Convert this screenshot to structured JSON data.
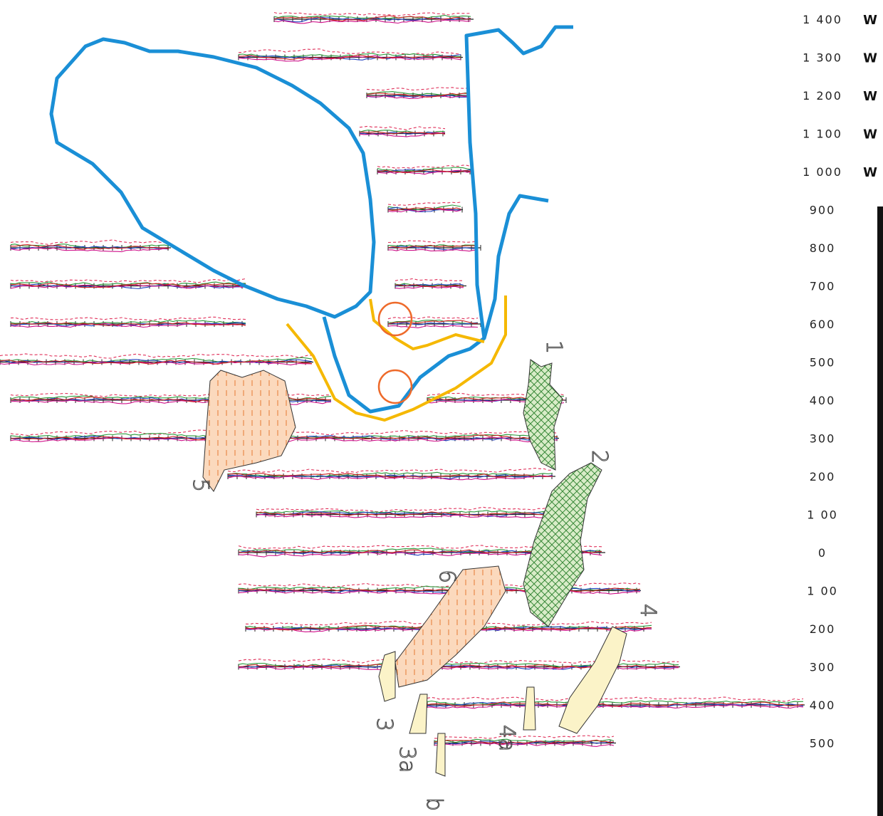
{
  "lines": [
    {
      "label": "1 400",
      "suffix": "W"
    },
    {
      "label": "1 300",
      "suffix": "W"
    },
    {
      "label": "1 200",
      "suffix": "W"
    },
    {
      "label": "1 100",
      "suffix": "W"
    },
    {
      "label": "1 000",
      "suffix": "W"
    },
    {
      "label": "900"
    },
    {
      "label": "800"
    },
    {
      "label": "700"
    },
    {
      "label": "600"
    },
    {
      "label": "500"
    },
    {
      "label": "400"
    },
    {
      "label": "300"
    },
    {
      "label": "200"
    },
    {
      "label": "1 00"
    },
    {
      "label": "0"
    },
    {
      "label": "1 00"
    },
    {
      "label": "200"
    },
    {
      "label": "300"
    },
    {
      "label": "400"
    },
    {
      "label": "500"
    }
  ],
  "anomalies": [
    {
      "label": "1"
    },
    {
      "label": "2"
    },
    {
      "label": "4"
    },
    {
      "label": "5"
    },
    {
      "label": "6"
    },
    {
      "label": "3"
    },
    {
      "label": "3a"
    },
    {
      "label": "4a"
    },
    {
      "label": "b"
    }
  ]
}
